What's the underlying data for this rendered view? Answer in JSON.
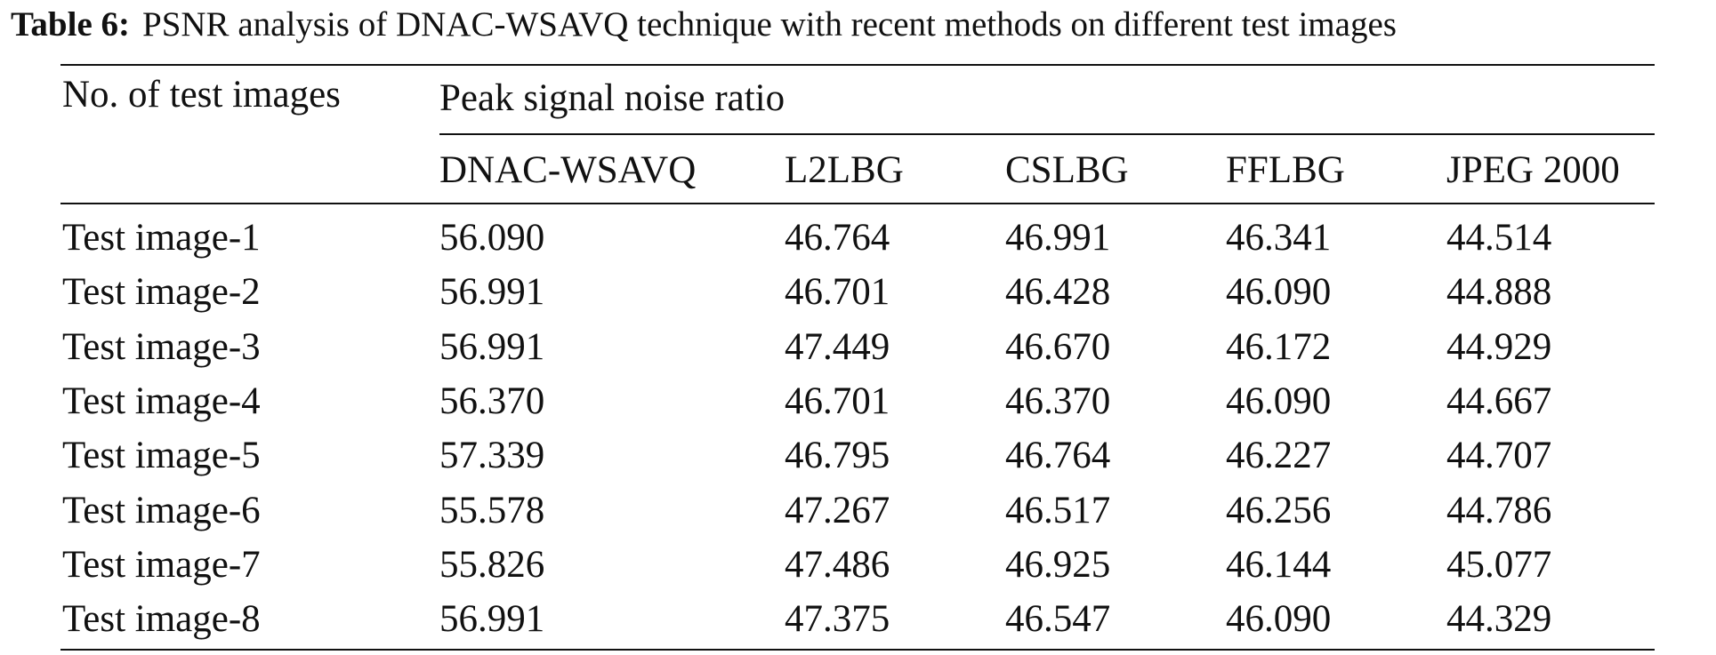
{
  "caption": {
    "label": "Table 6:",
    "text": "PSNR analysis of DNAC-WSAVQ technique with recent methods on different test images"
  },
  "table": {
    "stub_header": "No. of test images",
    "group_header": "Peak signal noise ratio",
    "columns": [
      "DNAC-WSAVQ",
      "L2LBG",
      "CSLBG",
      "FFLBG",
      "JPEG 2000"
    ],
    "rows": [
      {
        "label": "Test image-1",
        "values": [
          "56.090",
          "46.764",
          "46.991",
          "46.341",
          "44.514"
        ]
      },
      {
        "label": "Test image-2",
        "values": [
          "56.991",
          "46.701",
          "46.428",
          "46.090",
          "44.888"
        ]
      },
      {
        "label": "Test image-3",
        "values": [
          "56.991",
          "47.449",
          "46.670",
          "46.172",
          "44.929"
        ]
      },
      {
        "label": "Test image-4",
        "values": [
          "56.370",
          "46.701",
          "46.370",
          "46.090",
          "44.667"
        ]
      },
      {
        "label": "Test image-5",
        "values": [
          "57.339",
          "46.795",
          "46.764",
          "46.227",
          "44.707"
        ]
      },
      {
        "label": "Test image-6",
        "values": [
          "55.578",
          "47.267",
          "46.517",
          "46.256",
          "44.786"
        ]
      },
      {
        "label": "Test image-7",
        "values": [
          "55.826",
          "47.486",
          "46.925",
          "46.144",
          "45.077"
        ]
      },
      {
        "label": "Test image-8",
        "values": [
          "56.991",
          "47.375",
          "46.547",
          "46.090",
          "44.329"
        ]
      }
    ]
  }
}
